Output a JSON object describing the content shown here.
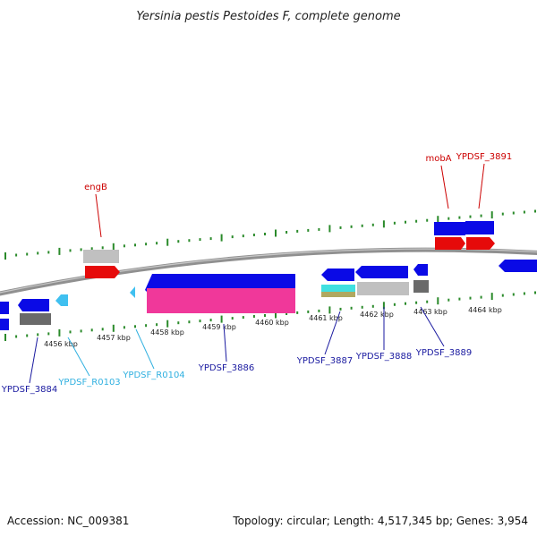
{
  "title": "Yersinia pestis Pestoides F, complete genome",
  "footer": {
    "accession": "Accession: NC_009381",
    "summary": "Topology: circular; Length: 4,517,345 bp; Genes: 3,954"
  },
  "colors": {
    "blue": "#0a0ae6",
    "red": "#e60a0a",
    "lightgray": "#c0c0c0",
    "darkgray": "#6a6a6a",
    "cyan": "#40c0f0",
    "pink": "#f0389a",
    "backbone": "#909090",
    "tick": "#2a8a2a",
    "label_red": "#cc0000",
    "label_blue": "#1a1aa0",
    "label_cyan": "#30b0e0"
  },
  "scale_ticks": [
    "4456 kbp",
    "4457 kbp",
    "4458 kbp",
    "4459 kbp",
    "4460 kbp",
    "4461 kbp",
    "4462 kbp",
    "4463 kbp",
    "4464 kbp"
  ],
  "gene_labels": [
    {
      "text": "engB",
      "color": "red"
    },
    {
      "text": "mobA",
      "color": "red"
    },
    {
      "text": "YPDSF_3891",
      "color": "red"
    },
    {
      "text": "YPDSF_3884",
      "color": "blue"
    },
    {
      "text": "YPDSF_R0103",
      "color": "cyan"
    },
    {
      "text": "YPDSF_R0104",
      "color": "cyan"
    },
    {
      "text": "YPDSF_3886",
      "color": "blue"
    },
    {
      "text": "YPDSF_3887",
      "color": "blue"
    },
    {
      "text": "YPDSF_3888",
      "color": "blue"
    },
    {
      "text": "YPDSF_3889",
      "color": "blue"
    }
  ]
}
